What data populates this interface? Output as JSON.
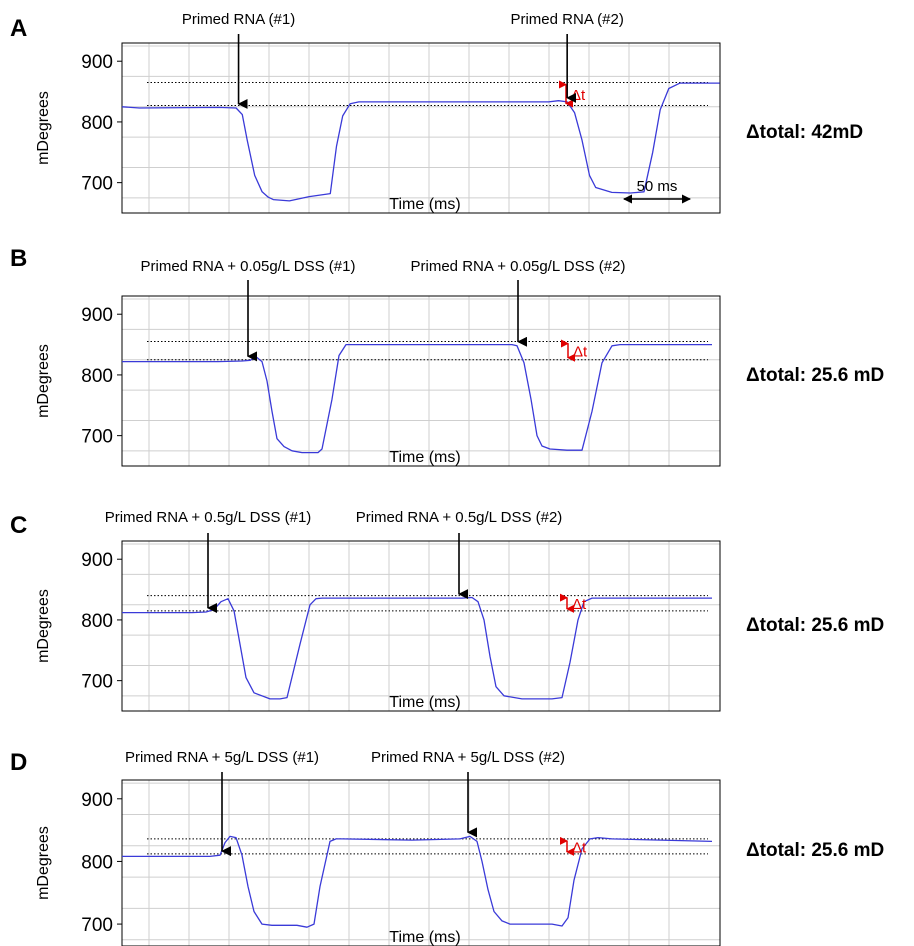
{
  "chart_data": [
    {
      "type": "line",
      "panel_label": "A",
      "xlabel": "Time (ms)",
      "ylabel": "mDegrees",
      "yticks": [
        700,
        800,
        900
      ],
      "ylim": [
        650,
        930
      ],
      "grid": true,
      "annotations": [
        {
          "text": "Primed RNA (#1)",
          "x": 94
        },
        {
          "text": "Primed RNA (#2)",
          "x": 359
        }
      ],
      "dotted_levels": [
        827,
        865
      ],
      "delta_label": "Δt",
      "scale_bar": "50 ms",
      "total": "Δtotal: 42mD",
      "series": [
        {
          "color": "#3a3ad8",
          "x": [
            0,
            14,
            78,
            92,
            97,
            101,
            107,
            113,
            118,
            122,
            135,
            151,
            168,
            173,
            178,
            184,
            191,
            256,
            344,
            352,
            359,
            365,
            371,
            377,
            382,
            395,
            410,
            421,
            428,
            434,
            441,
            450,
            458,
            482
          ],
          "y": [
            825,
            823,
            824,
            823,
            812,
            770,
            712,
            685,
            676,
            672,
            670,
            677,
            682,
            760,
            810,
            830,
            833,
            833,
            833,
            835,
            833,
            815,
            770,
            712,
            692,
            684,
            683,
            685,
            750,
            820,
            855,
            864,
            864,
            864
          ]
        }
      ]
    },
    {
      "type": "line",
      "panel_label": "B",
      "xlabel": "Time (ms)",
      "ylabel": "mDegrees",
      "yticks": [
        700,
        800,
        900
      ],
      "ylim": [
        650,
        930
      ],
      "grid": true,
      "annotations": [
        {
          "text": "Primed RNA + 0.05g/L DSS (#1)",
          "x": 126
        },
        {
          "text": "Primed RNA + 0.05g/L DSS (#2)",
          "x": 396
        }
      ],
      "dotted_levels": [
        825,
        855
      ],
      "delta_label": "Δt",
      "total": "Δtotal: 25.6 mD",
      "series": [
        {
          "color": "#3a3ad8",
          "x": [
            0,
            96,
            120,
            128,
            134,
            140,
            145,
            150,
            155,
            162,
            170,
            180,
            196,
            200,
            210,
            217,
            224,
            230,
            320,
            390,
            395,
            402,
            409,
            415,
            420,
            428,
            445,
            460,
            470,
            480,
            490,
            498,
            590
          ],
          "y": [
            822,
            822,
            823,
            824,
            830,
            822,
            790,
            740,
            695,
            682,
            675,
            672,
            672,
            678,
            760,
            832,
            850,
            850,
            850,
            850,
            848,
            820,
            760,
            700,
            683,
            678,
            676,
            676,
            740,
            820,
            848,
            850,
            850
          ]
        }
      ]
    },
    {
      "type": "line",
      "panel_label": "C",
      "xlabel": "Time (ms)",
      "ylabel": "mDegrees",
      "yticks": [
        700,
        800,
        900
      ],
      "ylim": [
        650,
        930
      ],
      "grid": true,
      "annotations": [
        {
          "text": "Primed RNA + 0.5g/L DSS (#1)",
          "x": 86
        },
        {
          "text": "Primed RNA + 0.5g/L DSS (#2)",
          "x": 337
        }
      ],
      "dotted_levels": [
        815,
        840
      ],
      "delta_label": "Δt",
      "total": "Δtotal: 25.6 mD",
      "series": [
        {
          "color": "#3a3ad8",
          "x": [
            0,
            70,
            84,
            92,
            99,
            106,
            112,
            118,
            124,
            132,
            148,
            158,
            165,
            178,
            188,
            194,
            200,
            260,
            340,
            350,
            356,
            362,
            368,
            374,
            382,
            400,
            430,
            440,
            448,
            456,
            462,
            470,
            490,
            590
          ],
          "y": [
            812,
            812,
            813,
            817,
            830,
            835,
            815,
            760,
            705,
            680,
            670,
            670,
            672,
            760,
            825,
            835,
            836,
            836,
            836,
            837,
            830,
            800,
            740,
            690,
            675,
            670,
            670,
            672,
            730,
            800,
            830,
            836,
            836,
            836
          ]
        }
      ]
    },
    {
      "type": "line",
      "panel_label": "D",
      "xlabel": "Time (ms)",
      "ylabel": "mDegrees",
      "yticks": [
        700,
        800,
        900
      ],
      "ylim": [
        665,
        930
      ],
      "grid": true,
      "annotations": [
        {
          "text": "Primed RNA + 5g/L DSS (#1)",
          "x": 100
        },
        {
          "text": "Primed RNA + 5g/L DSS (#2)",
          "x": 346
        }
      ],
      "dotted_levels": [
        812,
        836
      ],
      "delta_label": "Δt",
      "total": "Δtotal: 25.6 mD",
      "series": [
        {
          "color": "#3a3ad8",
          "x": [
            0,
            88,
            98,
            103,
            108,
            114,
            120,
            126,
            132,
            140,
            150,
            175,
            185,
            192,
            198,
            208,
            214,
            220,
            290,
            338,
            348,
            355,
            360,
            366,
            372,
            380,
            388,
            400,
            430,
            440,
            446,
            452,
            460,
            468,
            476,
            490,
            590
          ],
          "y": [
            808,
            808,
            810,
            830,
            840,
            838,
            810,
            760,
            720,
            700,
            698,
            698,
            695,
            700,
            760,
            832,
            836,
            836,
            834,
            836,
            840,
            832,
            800,
            755,
            720,
            705,
            700,
            700,
            700,
            697,
            710,
            770,
            820,
            836,
            838,
            836,
            832
          ]
        }
      ]
    }
  ]
}
